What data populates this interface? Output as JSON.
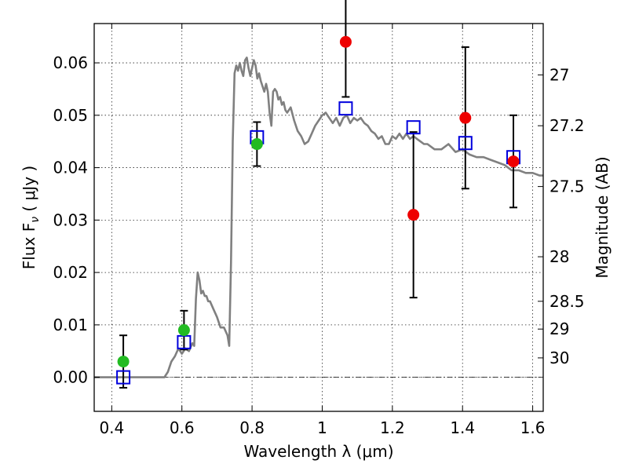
{
  "chart_data": {
    "type": "scatter",
    "xlabel": "Wavelength  λ (μm)",
    "ylabel": "Flux  F",
    "ylabel_sub": "ν",
    "ylabel_unit": "  ( μJy )",
    "ylabel_right": "Magnitude (AB)",
    "xlim": [
      0.35,
      1.63
    ],
    "ylim": [
      -0.0065,
      0.0675
    ],
    "x_ticks": [
      0.4,
      0.6,
      0.8,
      1.0,
      1.2,
      1.4,
      1.6
    ],
    "x_tick_labels": [
      "0.4",
      "0.6",
      "0.8",
      "1",
      "1.2",
      "1.4",
      "1.6"
    ],
    "y_ticks": [
      0.0,
      0.01,
      0.02,
      0.03,
      0.04,
      0.05,
      0.06
    ],
    "y_tick_labels": [
      "0.00",
      "0.01",
      "0.02",
      "0.03",
      "0.04",
      "0.05",
      "0.06"
    ],
    "right_ticks": [
      {
        "label": "27",
        "flux": 0.0577
      },
      {
        "label": "27.2",
        "flux": 0.048
      },
      {
        "label": "27.5",
        "flux": 0.0364
      },
      {
        "label": "28",
        "flux": 0.023
      },
      {
        "label": "28.5",
        "flux": 0.0145
      },
      {
        "label": "29",
        "flux": 0.0092
      },
      {
        "label": "30",
        "flux": 0.0037
      }
    ],
    "grid": true,
    "zero_line": 0.0,
    "colors": {
      "model": "#808080",
      "green": "#22bb22",
      "red": "#ee0000",
      "square": "#0000dd",
      "errorbar": "#000000"
    },
    "model_spectrum": {
      "x": [
        0.35,
        0.55,
        0.56,
        0.57,
        0.58,
        0.59,
        0.6,
        0.61,
        0.62,
        0.63,
        0.635,
        0.64,
        0.645,
        0.65,
        0.655,
        0.66,
        0.665,
        0.67,
        0.675,
        0.68,
        0.69,
        0.7,
        0.71,
        0.72,
        0.73,
        0.735,
        0.74,
        0.745,
        0.75,
        0.755,
        0.76,
        0.765,
        0.77,
        0.775,
        0.78,
        0.785,
        0.79,
        0.795,
        0.8,
        0.805,
        0.81,
        0.815,
        0.82,
        0.825,
        0.83,
        0.835,
        0.84,
        0.845,
        0.85,
        0.855,
        0.86,
        0.865,
        0.87,
        0.875,
        0.88,
        0.885,
        0.89,
        0.895,
        0.9,
        0.91,
        0.92,
        0.93,
        0.94,
        0.95,
        0.96,
        0.97,
        0.98,
        0.99,
        1.0,
        1.01,
        1.02,
        1.03,
        1.04,
        1.05,
        1.06,
        1.07,
        1.08,
        1.09,
        1.1,
        1.11,
        1.12,
        1.13,
        1.14,
        1.15,
        1.16,
        1.17,
        1.18,
        1.19,
        1.2,
        1.21,
        1.22,
        1.23,
        1.24,
        1.25,
        1.26,
        1.27,
        1.28,
        1.29,
        1.3,
        1.32,
        1.34,
        1.36,
        1.38,
        1.4,
        1.42,
        1.44,
        1.46,
        1.48,
        1.5,
        1.52,
        1.54,
        1.56,
        1.58,
        1.6,
        1.62,
        1.63
      ],
      "y": [
        0.0,
        0.0,
        0.001,
        0.003,
        0.004,
        0.0055,
        0.0045,
        0.0055,
        0.005,
        0.0065,
        0.006,
        0.015,
        0.02,
        0.0185,
        0.016,
        0.0165,
        0.0155,
        0.0155,
        0.0145,
        0.0145,
        0.013,
        0.0115,
        0.0095,
        0.0095,
        0.008,
        0.006,
        0.022,
        0.045,
        0.058,
        0.0595,
        0.0585,
        0.06,
        0.0585,
        0.0575,
        0.0605,
        0.061,
        0.059,
        0.0575,
        0.059,
        0.0605,
        0.0595,
        0.057,
        0.058,
        0.0565,
        0.0555,
        0.0545,
        0.056,
        0.0545,
        0.0505,
        0.048,
        0.0545,
        0.055,
        0.0545,
        0.053,
        0.0535,
        0.052,
        0.0525,
        0.051,
        0.0505,
        0.0515,
        0.049,
        0.047,
        0.046,
        0.0445,
        0.045,
        0.0465,
        0.048,
        0.049,
        0.05,
        0.0505,
        0.0495,
        0.0485,
        0.0495,
        0.048,
        0.0495,
        0.05,
        0.0485,
        0.0495,
        0.049,
        0.0495,
        0.0485,
        0.048,
        0.047,
        0.0465,
        0.0455,
        0.046,
        0.0445,
        0.0445,
        0.046,
        0.0455,
        0.0465,
        0.0455,
        0.0465,
        0.0455,
        0.046,
        0.0455,
        0.045,
        0.0445,
        0.0445,
        0.0435,
        0.0435,
        0.0445,
        0.043,
        0.0435,
        0.0425,
        0.042,
        0.042,
        0.0415,
        0.041,
        0.0405,
        0.0395,
        0.0395,
        0.039,
        0.039,
        0.0385,
        0.0385
      ]
    },
    "green_points": [
      {
        "x": 0.433,
        "y": 0.003,
        "err": 0.005
      },
      {
        "x": 0.606,
        "y": 0.009,
        "err": 0.0037
      },
      {
        "x": 0.814,
        "y": 0.0445,
        "err": 0.0042
      }
    ],
    "red_points": [
      {
        "x": 1.067,
        "y": 0.064,
        "err": 0.0105
      },
      {
        "x": 1.26,
        "y": 0.031,
        "err": 0.0158
      },
      {
        "x": 1.408,
        "y": 0.0495,
        "err": 0.0135
      },
      {
        "x": 1.545,
        "y": 0.0412,
        "err": 0.0088
      }
    ],
    "squares": [
      {
        "x": 0.433,
        "y": 0.0
      },
      {
        "x": 0.606,
        "y": 0.0067
      },
      {
        "x": 0.814,
        "y": 0.0458
      },
      {
        "x": 1.067,
        "y": 0.0513
      },
      {
        "x": 1.26,
        "y": 0.0477
      },
      {
        "x": 1.408,
        "y": 0.0447
      },
      {
        "x": 1.545,
        "y": 0.042
      }
    ]
  }
}
